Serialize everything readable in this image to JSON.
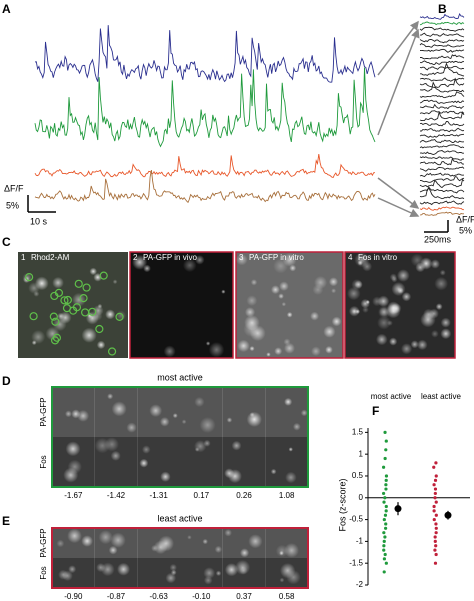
{
  "panel_a": {
    "letter": "A",
    "scale_y_label": "ΔF/F",
    "scale_y_value": "5%",
    "scale_x_value": "10 s"
  },
  "panel_b": {
    "letter": "B",
    "scale_y_label": "ΔF/F",
    "scale_y_value": "5%",
    "scale_x_value": "250ms"
  },
  "panel_c": {
    "letter": "C",
    "images": [
      {
        "number": "1",
        "label": "Rhod2-AM"
      },
      {
        "number": "2",
        "label": "PA-GFP in vivo"
      },
      {
        "number": "3",
        "label": "PA-GFP in vitro"
      },
      {
        "number": "4",
        "label": "Fos in vitro"
      }
    ]
  },
  "panel_d": {
    "letter": "D",
    "title": "most active",
    "row_labels": [
      "PA-GFP",
      "Fos"
    ],
    "values": [
      "-1.67",
      "-1.42",
      "-1.31",
      "0.17",
      "0.26",
      "1.08"
    ]
  },
  "panel_e": {
    "letter": "E",
    "title": "least active",
    "row_labels": [
      "PA-GFP",
      "Fos"
    ],
    "values": [
      "-0.90",
      "-0.87",
      "-0.63",
      "-0.10",
      "0.37",
      "0.58"
    ]
  },
  "panel_f": {
    "letter": "F",
    "chart_data": {
      "type": "scatter",
      "y_label": "Fos (z-score)",
      "ylim": [
        -2,
        1.6
      ],
      "yticks": [
        1.5,
        1,
        0.5,
        0,
        -0.5,
        -1,
        -1.5,
        -2
      ],
      "series": [
        {
          "name": "most active",
          "color": "#1f9a3c",
          "values": [
            1.5,
            1.3,
            1.1,
            0.9,
            0.7,
            0.5,
            0.4,
            0.3,
            0.2,
            0.1,
            0.0,
            -0.1,
            -0.2,
            -0.3,
            -0.4,
            -0.5,
            -0.6,
            -0.7,
            -0.8,
            -0.9,
            -1.0,
            -1.1,
            -1.2,
            -1.3,
            -1.4,
            -1.5,
            -1.7
          ],
          "mean": -0.25,
          "error": 0.15
        },
        {
          "name": "least active",
          "color": "#c0203a",
          "values": [
            0.8,
            0.7,
            0.5,
            0.4,
            0.3,
            0.2,
            0.1,
            0.0,
            -0.1,
            -0.2,
            -0.3,
            -0.4,
            -0.5,
            -0.6,
            -0.7,
            -0.8,
            -0.9,
            -1.0,
            -1.1,
            -1.2,
            -1.3,
            -1.5
          ],
          "mean": -0.4,
          "error": 0.1
        }
      ]
    }
  }
}
